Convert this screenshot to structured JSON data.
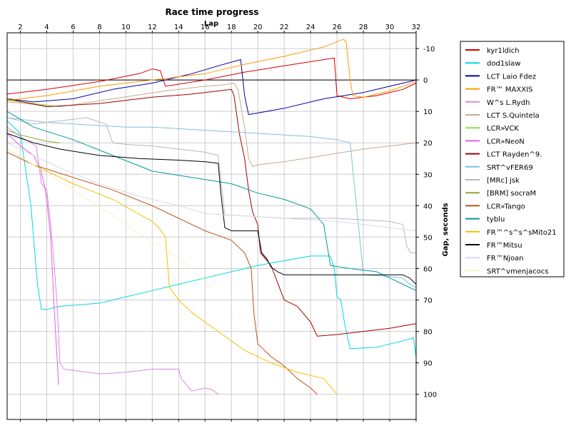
{
  "chart_data": {
    "type": "line",
    "title": "Race time progress",
    "xlabel": "Lap",
    "ylabel": "Gap, seconds",
    "xlim": [
      1,
      32
    ],
    "ylim": [
      108,
      -15
    ],
    "y_inverted": true,
    "grid": true,
    "legend_position": "right",
    "x_ticks": [
      2,
      4,
      6,
      8,
      10,
      12,
      14,
      16,
      18,
      20,
      22,
      24,
      26,
      28,
      30,
      32
    ],
    "y_ticks": [
      -10,
      0,
      10,
      20,
      30,
      40,
      50,
      60,
      70,
      80,
      90,
      100
    ],
    "y_tick_labels": [
      "-10",
      "0",
      "10",
      "20",
      "30",
      "40",
      "50",
      "60",
      "70",
      "80",
      "90",
      "100"
    ],
    "series": [
      {
        "name": "kyr1ldich",
        "color": "#d40000",
        "x": [
          1,
          4,
          8,
          11,
          12,
          12.6,
          13,
          16,
          19,
          22,
          25.8,
          26,
          27,
          29,
          31,
          32
        ],
        "y": [
          4.5,
          3,
          0.5,
          -2,
          -3.5,
          -3,
          2,
          0,
          -2.5,
          -4.5,
          -7,
          5,
          6,
          5,
          3,
          1
        ]
      },
      {
        "name": "dod1slaw",
        "color": "#00d8e0",
        "x": [
          1,
          2,
          2.8,
          3.3,
          3.6,
          4,
          5,
          8,
          12,
          16,
          20,
          24,
          25.5,
          25.8,
          26,
          26.3,
          26.6,
          27,
          29,
          31,
          31.8,
          32
        ],
        "y": [
          13,
          17,
          40,
          65,
          73,
          73,
          72,
          71,
          67,
          63,
          59,
          56,
          56,
          60,
          69,
          70,
          78,
          85.5,
          85,
          83,
          82,
          88
        ]
      },
      {
        "name": "LCT Laio Fdez",
        "color": "#0000a0",
        "x": [
          1,
          3,
          6,
          9,
          12,
          15,
          17,
          18.7,
          19,
          19.3,
          20,
          22,
          25,
          28,
          30,
          32
        ],
        "y": [
          6,
          7,
          6,
          3,
          1,
          -2,
          -4.5,
          -6.5,
          5,
          11,
          10.5,
          9,
          6,
          4,
          2,
          0
        ]
      },
      {
        "name": "FR™ MAXXIS",
        "color": "#ff9900",
        "x": [
          1,
          4,
          8,
          12,
          16,
          19,
          22,
          25,
          26.5,
          26.7,
          27,
          27.2,
          28,
          30,
          32
        ],
        "y": [
          6.5,
          5,
          2,
          0,
          -2,
          -5,
          -7.5,
          -10.5,
          -13,
          -12,
          0,
          5,
          5.5,
          3.5,
          0.5
        ]
      },
      {
        "name": "W^s L.Rydh",
        "color": "#d888e0",
        "x": [
          1,
          2,
          3.2,
          3.6,
          4,
          4.2,
          4.5,
          4.8,
          5,
          5.3,
          8,
          10,
          12,
          14,
          14.2,
          15,
          16,
          16.5,
          17
        ],
        "y": [
          15,
          18,
          21,
          33,
          35,
          42,
          55,
          72,
          90,
          92,
          93.5,
          93,
          92,
          92,
          95,
          99,
          98,
          98.5,
          100
        ]
      },
      {
        "name": "LCT S.Quintela",
        "color": "#c8a890",
        "x": [
          1,
          5,
          9,
          13,
          16,
          17.5,
          18.2,
          18.5,
          19,
          19.3,
          19.6,
          20,
          22,
          25,
          28,
          30,
          32
        ],
        "y": [
          7,
          8.5,
          6,
          3.5,
          2,
          1.5,
          1,
          3,
          15,
          25,
          27.5,
          27,
          26,
          24,
          22,
          21,
          20
        ]
      },
      {
        "name": "LCR»VCK",
        "color": "#90e030",
        "x": [
          1,
          2,
          3,
          4,
          5
        ],
        "y": [
          6.5,
          7,
          7.5,
          8,
          8.5
        ]
      },
      {
        "name": "LCR»NeoN",
        "color": "#e060e0",
        "x": [
          1,
          2,
          3,
          3.5,
          3.8,
          4,
          4.3,
          4.6,
          4.9
        ],
        "y": [
          17,
          21,
          24,
          28,
          33,
          38,
          50,
          75,
          97
        ]
      },
      {
        "name": "LCT Rayden^9.",
        "color": "#a00000",
        "x": [
          1,
          4,
          8,
          12,
          15,
          17,
          18,
          18.2,
          18.6,
          19,
          19.3,
          19.6,
          20,
          20.2,
          21,
          22,
          23,
          24,
          24.5,
          26,
          28,
          30,
          32
        ],
        "y": [
          6,
          8.5,
          7.5,
          5.5,
          4.5,
          3.5,
          3,
          5,
          17,
          25,
          35,
          42,
          46,
          55,
          59,
          70,
          72,
          77,
          81.5,
          81,
          80,
          79,
          77.5
        ]
      },
      {
        "name": "SRT^vFER69",
        "color": "#80c0e0",
        "x": [
          1,
          2,
          3,
          4,
          6,
          8,
          10,
          12,
          14,
          16,
          18,
          20,
          22,
          24,
          25,
          26,
          27,
          28,
          30,
          31,
          31.5,
          32
        ],
        "y": [
          12,
          12.5,
          13,
          13.5,
          14,
          14.5,
          15,
          15,
          15.5,
          16,
          16.5,
          17,
          17.5,
          18,
          18.5,
          19,
          20,
          62,
          62.5,
          63,
          65,
          66
        ]
      },
      {
        "name": "[MRc] jsk",
        "color": "#b8b8b8",
        "x": [
          1,
          3,
          5,
          7,
          8.5,
          9,
          10,
          12,
          14,
          16,
          17,
          17.5,
          18,
          20,
          22,
          24,
          26,
          28,
          30,
          31,
          31.3,
          31.6,
          32
        ],
        "y": [
          12,
          14,
          13,
          12,
          14,
          20,
          20.5,
          21,
          22,
          23,
          24,
          43,
          43,
          43.5,
          44,
          44,
          44,
          44.5,
          45,
          46,
          53,
          55,
          55
        ]
      },
      {
        "name": "[BRM] socraM",
        "color": "#90a830",
        "x": [
          1,
          2,
          3,
          4,
          5
        ],
        "y": [
          16,
          17.5,
          18.5,
          19.5,
          20
        ]
      },
      {
        "name": "LCR»Tango",
        "color": "#c05018",
        "x": [
          1,
          3,
          6,
          9,
          12,
          14,
          16,
          18,
          19,
          19.5,
          19.7,
          20,
          21,
          22,
          23,
          24,
          24.5
        ],
        "y": [
          23,
          27,
          31,
          35,
          40,
          44,
          48,
          51,
          55,
          60,
          74,
          84,
          88,
          91,
          95,
          98,
          100
        ]
      },
      {
        "name": "tyblu",
        "color": "#009898",
        "x": [
          1,
          3,
          6,
          9,
          12,
          15,
          18,
          20,
          22,
          24,
          25,
          25.5,
          27,
          29,
          30,
          31,
          32
        ],
        "y": [
          10,
          15,
          19,
          24,
          29,
          31,
          33,
          36,
          38,
          41,
          46,
          59,
          60,
          61,
          63,
          65,
          67
        ]
      },
      {
        "name": "FR™^s^s^sMito21",
        "color": "#f0c000",
        "x": [
          1,
          3,
          6,
          9,
          12,
          12.5,
          13,
          13.3,
          14,
          15,
          17,
          19,
          21,
          23,
          25,
          26
        ],
        "y": [
          22,
          27,
          33,
          38,
          45,
          47,
          50,
          66,
          70,
          74,
          80,
          86,
          90,
          93,
          95,
          100
        ]
      },
      {
        "name": "FR™Mitsu",
        "color": "#000000",
        "x": [
          1,
          3,
          5,
          8,
          11,
          14,
          16,
          17,
          17.2,
          17.5,
          18,
          20,
          20.3,
          20.7,
          21,
          21.5,
          22,
          24,
          26,
          28,
          30,
          31,
          31.5,
          32
        ],
        "y": [
          17,
          20,
          22,
          24,
          25,
          25.5,
          26,
          26.5,
          36,
          47,
          48,
          48,
          55,
          57,
          59.5,
          61,
          62,
          62,
          62,
          62,
          62,
          62,
          63,
          65
        ]
      },
      {
        "name": "FR™Njoan",
        "color": "#d8d8f0",
        "x": [
          1,
          3,
          5,
          8,
          11,
          14,
          16,
          18,
          20,
          22,
          24,
          26,
          28,
          30,
          32
        ],
        "y": [
          20,
          24,
          28,
          33,
          37,
          40,
          42.5,
          43,
          43.5,
          44,
          44.5,
          45,
          46,
          47,
          48
        ]
      },
      {
        "name": "SRT^vmenjacocs",
        "color": "#f8f0c8",
        "x": [
          1,
          3,
          6,
          9,
          11,
          13,
          15,
          16,
          16.5
        ],
        "y": [
          22,
          27,
          35,
          43,
          49,
          54,
          60,
          64,
          66
        ]
      }
    ]
  }
}
